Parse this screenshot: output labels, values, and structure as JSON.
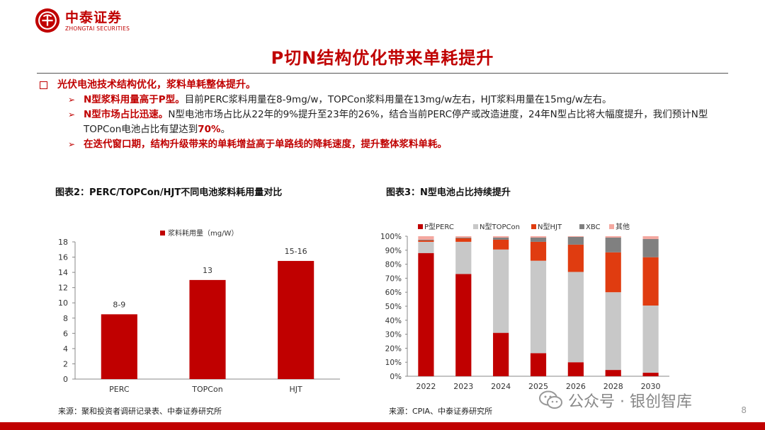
{
  "brand": {
    "name_cn": "中泰证券",
    "name_en": "ZHONGTAI SECURITIES"
  },
  "title": "P切N结构优化带来单耗提升",
  "bullets": {
    "main": "光伏电池技术结构优化，浆料单耗整体提升。",
    "b1_red": "N型浆料用量高于P型。",
    "b1_rest": "目前PERC浆料用量在8-9mg/w，TOPCon浆料用量在13mg/w左右，HJT浆料用量在15mg/w左右。",
    "b2_red": "N型市场占比迅速。",
    "b2_rest": "N型电池市场占比从22年的9%提升至23年的26%，结合当前PERC停产或改造进度，24年N型占比将大幅度提升，我们预计N型TOPCon电池占比有望达到",
    "b2_red2": "70%",
    "b2_end": "。",
    "b3_red": "在迭代窗口期，结构升级带来的单耗增益高于单路线的降耗速度，提升整体浆料单耗。"
  },
  "fig2": {
    "title": "图表2：PERC/TOPCon/HJT不同电池浆料耗用量对比",
    "source": "来源：聚和投资者调研记录表、中泰证券研究所"
  },
  "fig3": {
    "title": "图表3：N型电池占比持续提升",
    "source": "来源：CPIA、中泰证券研究所"
  },
  "watermark": "公众号 · 银创智库",
  "page_number": "8",
  "chart_data": [
    {
      "type": "bar",
      "categories": [
        "PERC",
        "TOPCon",
        "HJT"
      ],
      "series": [
        {
          "name": "浆料耗用量（mg/W）",
          "values": [
            8.5,
            13,
            15.5
          ],
          "color": "#c00000"
        }
      ],
      "data_labels": [
        "8-9",
        "13",
        "15-16"
      ],
      "ylim": [
        0,
        18
      ],
      "yticks": [
        "0",
        "2",
        "4",
        "6",
        "8",
        "10",
        "12",
        "14",
        "16",
        "18"
      ],
      "legend": "top-center",
      "grid": false
    },
    {
      "type": "bar",
      "stacked": true,
      "categories": [
        "2022",
        "2023",
        "2024",
        "2025",
        "2026",
        "2028",
        "2030"
      ],
      "series": [
        {
          "name": "P型PERC",
          "color": "#c00000",
          "values": [
            88,
            73,
            31,
            16.5,
            10,
            4.5,
            2.5
          ]
        },
        {
          "name": "N型TOPCon",
          "color": "#c8c8c8",
          "values": [
            8,
            23,
            59.5,
            66,
            64.5,
            55.5,
            48
          ]
        },
        {
          "name": "N型HJT",
          "color": "#e03c10",
          "values": [
            1,
            2.5,
            7,
            13.5,
            19.5,
            28.5,
            34.5
          ]
        },
        {
          "name": "XBC",
          "color": "#808080",
          "values": [
            0.5,
            0.5,
            1.5,
            3,
            5.5,
            10.5,
            13
          ]
        },
        {
          "name": "其他",
          "color": "#f4a8a0",
          "values": [
            2.5,
            1,
            1,
            1,
            0.5,
            1,
            2
          ]
        }
      ],
      "ylim": [
        0,
        100
      ],
      "yticks": [
        "0%",
        "10%",
        "20%",
        "30%",
        "40%",
        "50%",
        "60%",
        "70%",
        "80%",
        "90%",
        "100%"
      ],
      "legend": "top",
      "grid": false
    }
  ]
}
